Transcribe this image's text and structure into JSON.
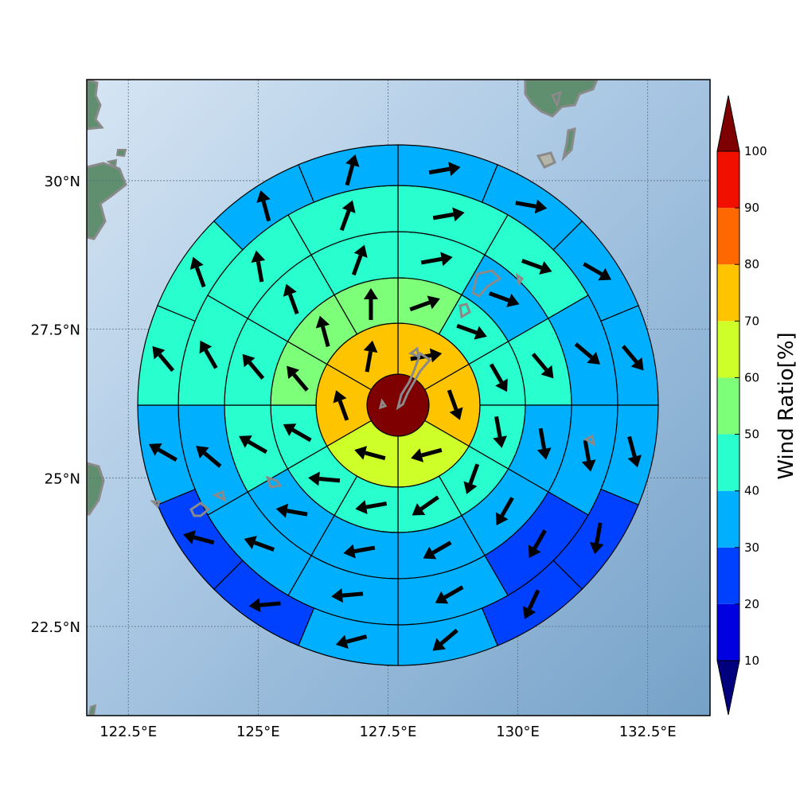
{
  "map": {
    "lon_range": [
      121.7,
      133.7
    ],
    "lat_range": [
      21.0,
      31.7
    ],
    "lon_ticks": [
      {
        "value": 122.5,
        "label": "122.5°E"
      },
      {
        "value": 125,
        "label": "125°E"
      },
      {
        "value": 127.5,
        "label": "127.5°E"
      },
      {
        "value": 130,
        "label": "130°E"
      },
      {
        "value": 132.5,
        "label": "132.5°E"
      }
    ],
    "lat_ticks": [
      {
        "value": 30,
        "label": "30°N"
      },
      {
        "value": 27.5,
        "label": "27.5°N"
      },
      {
        "value": 25,
        "label": "25°N"
      },
      {
        "value": 22.5,
        "label": "22.5°N"
      }
    ],
    "grid": true,
    "ocean_colors": [
      "#d3e3f2",
      "#7fa8cc"
    ],
    "land_color": "#5f8f6e",
    "coast_color": "#8a8a8a",
    "center": {
      "lon": 127.7,
      "lat": 26.2
    }
  },
  "colorbar": {
    "title": "Wind Ratio[%]",
    "levels": [
      10,
      20,
      30,
      40,
      50,
      60,
      70,
      80,
      90,
      100
    ],
    "colors": [
      "#0000e0",
      "#0040ff",
      "#00b0ff",
      "#29ffce",
      "#7dff7a",
      "#ceff29",
      "#ffc400",
      "#ff6800",
      "#f10f00"
    ],
    "under_color": "#00007f",
    "over_color": "#7f0000",
    "extend": "both"
  },
  "chart_data": {
    "type": "polar-grid",
    "rings": [
      {
        "ring": 0,
        "sectors": 1,
        "values": [
          100
        ],
        "arrows_deg": [
          null
        ]
      },
      {
        "ring": 1,
        "sectors": 6,
        "start_deg": 0,
        "values": [
          75,
          75,
          65,
          65,
          75,
          75
        ],
        "arrows_deg": [
          80,
          160,
          255,
          285,
          340,
          10
        ]
      },
      {
        "ring": 2,
        "sectors": 12,
        "start_deg": 0,
        "values": [
          55,
          42,
          42,
          42,
          42,
          42,
          42,
          42,
          42,
          55,
          55,
          55
        ],
        "arrows_deg": [
          70,
          110,
          150,
          170,
          200,
          235,
          260,
          275,
          300,
          320,
          345,
          0
        ]
      },
      {
        "ring": 3,
        "sectors": 12,
        "start_deg": 0,
        "values": [
          45,
          35,
          42,
          35,
          35,
          35,
          35,
          35,
          42,
          45,
          45,
          45
        ],
        "arrows_deg": [
          80,
          110,
          140,
          170,
          210,
          240,
          260,
          280,
          300,
          320,
          340,
          20
        ]
      },
      {
        "ring": 4,
        "sectors": 12,
        "start_deg": 0,
        "values": [
          45,
          45,
          35,
          35,
          25,
          35,
          35,
          35,
          35,
          45,
          45,
          45
        ],
        "arrows_deg": [
          80,
          110,
          130,
          170,
          210,
          240,
          265,
          290,
          310,
          330,
          350,
          20
        ]
      },
      {
        "ring": 5,
        "sectors": 16,
        "start_deg": 0,
        "values": [
          35,
          35,
          35,
          35,
          35,
          25,
          25,
          35,
          35,
          25,
          25,
          35,
          45,
          45,
          35,
          35
        ],
        "arrows_deg": [
          80,
          100,
          120,
          140,
          165,
          190,
          205,
          230,
          255,
          265,
          285,
          300,
          320,
          340,
          345,
          15
        ]
      }
    ]
  }
}
